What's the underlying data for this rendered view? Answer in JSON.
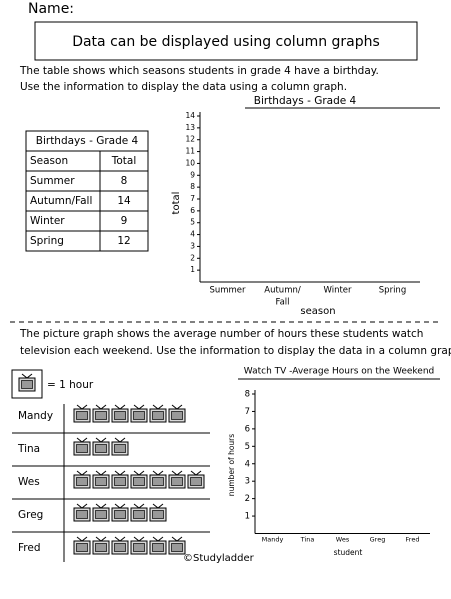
{
  "header": {
    "name_label": "Name:",
    "title": "Data can be displayed using column graphs"
  },
  "section1": {
    "instructions": [
      "The table shows which seasons students in grade 4 have a birthday.",
      "Use the information to display the data using a column graph."
    ],
    "table": {
      "title": "Birthdays - Grade 4",
      "columns": [
        "Season",
        "Total"
      ],
      "rows": [
        [
          "Summer",
          8
        ],
        [
          "Autumn/Fall",
          14
        ],
        [
          "Winter",
          9
        ],
        [
          "Spring",
          12
        ]
      ]
    },
    "chart": {
      "title": "Birthdays - Grade 4",
      "y_label": "total",
      "x_label": "season",
      "categories": [
        [
          "Summer"
        ],
        [
          "Autumn/",
          "Fall"
        ],
        [
          "Winter"
        ],
        [
          "Spring"
        ]
      ],
      "ylim": [
        0,
        14
      ],
      "yticks": [
        1,
        2,
        3,
        4,
        5,
        6,
        7,
        8,
        9,
        10,
        11,
        12,
        13,
        14
      ]
    }
  },
  "section2": {
    "instructions": [
      "The picture graph shows the average number of hours these students watch",
      "television each weekend. Use the information to display the data in a column graph."
    ],
    "key": "= 1 hour",
    "pictograph": {
      "names": [
        "Mandy",
        "Tina",
        "Wes",
        "Greg",
        "Fred"
      ],
      "counts": [
        6,
        3,
        7,
        5,
        6
      ]
    },
    "chart": {
      "title": "Watch TV -Average Hours on the Weekend",
      "y_label": "number of hours",
      "x_label": "student",
      "categories": [
        "Mandy",
        "Tina",
        "Wes",
        "Greg",
        "Fred"
      ],
      "ylim": [
        0,
        8
      ],
      "yticks": [
        1,
        2,
        3,
        4,
        5,
        6,
        7,
        8
      ]
    }
  },
  "footer": {
    "copyright": "©Studyladder"
  }
}
